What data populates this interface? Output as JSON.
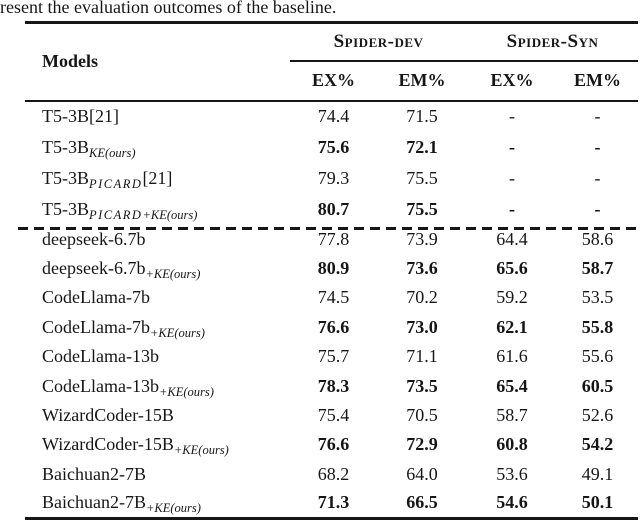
{
  "caption": "resent the evaluation outcomes of the baseline.",
  "colors": {
    "text": "#161616",
    "background": "#ffffff",
    "rule": "#161616"
  },
  "table": {
    "header": {
      "models_label": "Models",
      "groups": [
        {
          "label": "Spider-dev"
        },
        {
          "label": "Spider-Syn"
        }
      ],
      "subheaders": [
        "EX%",
        "EM%",
        "EX%",
        "EM%"
      ]
    },
    "rows": [
      {
        "model": "T5-3B",
        "sub": "",
        "ref": "[21]",
        "values": [
          "74.4",
          "71.5",
          "-",
          "-"
        ],
        "bold": false
      },
      {
        "model": "T5-3B",
        "sub": "KE(ours)",
        "ref": "",
        "values": [
          "75.6",
          "72.1",
          "-",
          "-"
        ],
        "bold": true
      },
      {
        "model": "T5-3B",
        "sub": "PICARD",
        "ref": "[21]",
        "values": [
          "79.3",
          "75.5",
          "-",
          "-"
        ],
        "bold": false
      },
      {
        "model": "T5-3B",
        "sub": "PICARD+KE(ours)",
        "ref": "",
        "values": [
          "80.7",
          "75.5",
          "-",
          "-"
        ],
        "bold": true
      },
      {
        "model": "deepseek-6.7b",
        "sub": "",
        "ref": "",
        "values": [
          "77.8",
          "73.9",
          "64.4",
          "58.6"
        ],
        "bold": false
      },
      {
        "model": "deepseek-6.7b",
        "sub": "+KE(ours)",
        "ref": "",
        "values": [
          "80.9",
          "73.6",
          "65.6",
          "58.7"
        ],
        "bold": true
      },
      {
        "model": "CodeLlama-7b",
        "sub": "",
        "ref": "",
        "values": [
          "74.5",
          "70.2",
          "59.2",
          "53.5"
        ],
        "bold": false
      },
      {
        "model": "CodeLlama-7b",
        "sub": "+KE(ours)",
        "ref": "",
        "values": [
          "76.6",
          "73.0",
          "62.1",
          "55.8"
        ],
        "bold": true
      },
      {
        "model": "CodeLlama-13b",
        "sub": "",
        "ref": "",
        "values": [
          "75.7",
          "71.1",
          "61.6",
          "55.6"
        ],
        "bold": false
      },
      {
        "model": "CodeLlama-13b",
        "sub": "+KE(ours)",
        "ref": "",
        "values": [
          "78.3",
          "73.5",
          "65.4",
          "60.5"
        ],
        "bold": true
      },
      {
        "model": "WizardCoder-15B",
        "sub": "",
        "ref": "",
        "values": [
          "75.4",
          "70.5",
          "58.7",
          "52.6"
        ],
        "bold": false
      },
      {
        "model": "WizardCoder-15B",
        "sub": "+KE(ours)",
        "ref": "",
        "values": [
          "76.6",
          "72.9",
          "60.8",
          "54.2"
        ],
        "bold": true
      },
      {
        "model": "Baichuan2-7B",
        "sub": "",
        "ref": "",
        "values": [
          "68.2",
          "64.0",
          "53.6",
          "49.1"
        ],
        "bold": false
      },
      {
        "model": "Baichuan2-7B",
        "sub": "+KE(ours)",
        "ref": "",
        "values": [
          "71.3",
          "66.5",
          "54.6",
          "50.1"
        ],
        "bold": true
      }
    ]
  }
}
